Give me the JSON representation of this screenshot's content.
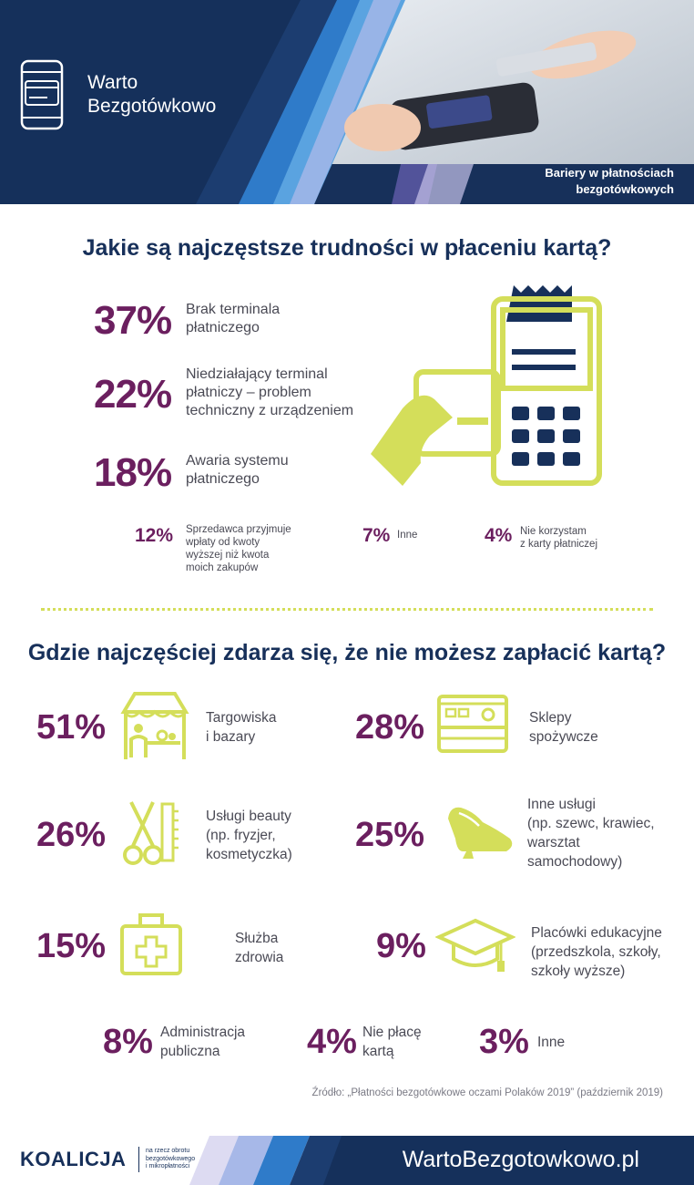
{
  "header": {
    "brand_line1": "Warto",
    "brand_line2": "Bezgotówkowo",
    "topic_line1": "Bariery w płatnościach",
    "topic_line2": "bezgotówkowych"
  },
  "section1": {
    "question": "Jakie są najczęstsze trudności w płaceniu kartą?",
    "major": [
      {
        "pct": "37%",
        "lines": [
          "Brak terminala",
          "płatniczego"
        ]
      },
      {
        "pct": "22%",
        "lines": [
          "Niedziałający terminal",
          "płatniczy – problem",
          "techniczny z urządzeniem"
        ]
      },
      {
        "pct": "18%",
        "lines": [
          "Awaria systemu",
          "płatniczego"
        ]
      }
    ],
    "minor": [
      {
        "pct": "12%",
        "lines": [
          "Sprzedawca przyjmuje",
          "wpłaty od kwoty",
          "wyższej niż kwota",
          "moich zakupów"
        ]
      },
      {
        "pct": "7%",
        "lines": [
          "Inne"
        ]
      },
      {
        "pct": "4%",
        "lines": [
          "Nie korzystam",
          "z karty płatniczej"
        ]
      }
    ]
  },
  "section2": {
    "question": "Gdzie najczęściej zdarza się, że nie możesz zapłacić kartą?",
    "items": [
      {
        "pct": "51%",
        "icon": "market-stall-icon",
        "lines": [
          "Targowiska",
          "i bazary"
        ]
      },
      {
        "pct": "28%",
        "icon": "grocery-store-icon",
        "lines": [
          "Sklepy",
          "spożywcze"
        ]
      },
      {
        "pct": "26%",
        "icon": "scissors-comb-icon",
        "lines": [
          "Usługi beauty",
          "(np. fryzjer,",
          "kosmetyczka)"
        ]
      },
      {
        "pct": "25%",
        "icon": "shoe-icon",
        "lines": [
          "Inne usługi",
          "(np. szewc, krawiec,",
          "warsztat",
          "samochodowy)"
        ]
      },
      {
        "pct": "15%",
        "icon": "first-aid-kit-icon",
        "lines": [
          "Służba",
          "zdrowia"
        ]
      },
      {
        "pct": "9%",
        "icon": "graduation-cap-icon",
        "lines": [
          "Placówki edukacyjne",
          "(przedszkola, szkoły,",
          "szkoły wyższe)"
        ]
      }
    ],
    "bottom": [
      {
        "pct": "8%",
        "lines": [
          "Administracja",
          "publiczna"
        ]
      },
      {
        "pct": "4%",
        "lines": [
          "Nie płacę",
          "kartą"
        ]
      },
      {
        "pct": "3%",
        "lines": [
          "Inne"
        ]
      }
    ],
    "source": "Źródło: „Płatności bezgotówkowe oczami Polaków 2019” (październik 2019)"
  },
  "footer": {
    "logo": "KOALICJA",
    "logo_sub1": "na rzecz obrotu",
    "logo_sub2": "bezgotówkowego",
    "logo_sub3": "i mikropłatności",
    "website": "WartoBezgotowkowo.pl"
  },
  "colors": {
    "navy": "#17305a",
    "purple": "#6b1f5f",
    "lime": "#d4de5a"
  }
}
